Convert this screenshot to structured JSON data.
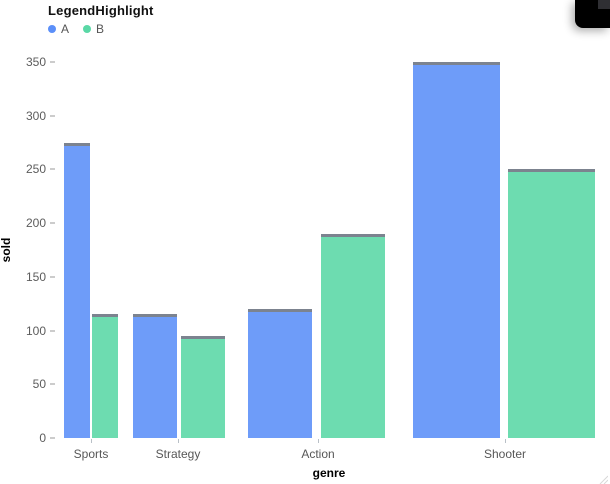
{
  "legend": {
    "title": "LegendHighlight",
    "items": [
      {
        "label": "A",
        "color": "#5B8FF9"
      },
      {
        "label": "B",
        "color": "#5AD8A6"
      }
    ]
  },
  "chart_data": {
    "type": "bar",
    "title": "LegendHighlight",
    "categories": [
      "Sports",
      "Strategy",
      "Action",
      "Shooter"
    ],
    "series": [
      {
        "name": "A",
        "color": "#5B8FF9",
        "values": [
          275,
          115,
          120,
          350
        ]
      },
      {
        "name": "B",
        "color": "#5AD8A6",
        "values": [
          115,
          95,
          190,
          250
        ]
      }
    ],
    "xlabel": "genre",
    "ylabel": "sold",
    "ylim": [
      0,
      350
    ],
    "yticks": [
      0,
      50,
      100,
      150,
      200,
      250,
      300,
      350
    ],
    "legend_position": "top-left",
    "grid": false,
    "bar_cap_color": "#6b7280",
    "note_unequal_band_widths": "bar width grows per category left to right"
  }
}
